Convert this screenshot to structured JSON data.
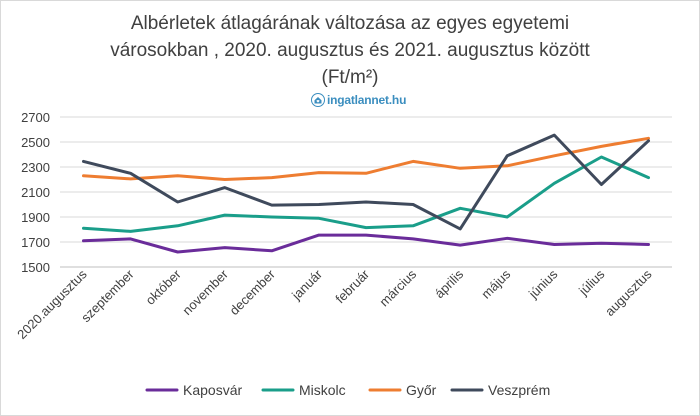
{
  "chart_data": {
    "type": "line",
    "title_lines": [
      "Albérletek átlagárának változása az egyes egyetemi",
      "városokban , 2020. augusztus és 2021. augusztus között",
      "(Ft/m²)"
    ],
    "categories": [
      "2020.augusztus",
      "szeptember",
      "október",
      "november",
      "december",
      "január",
      "február",
      "március",
      "április",
      "május",
      "június",
      "július",
      "augusztus"
    ],
    "ylim": [
      1500,
      2700
    ],
    "yticks": [
      1500,
      1700,
      1900,
      2100,
      2300,
      2500,
      2700
    ],
    "grid": true,
    "legend_position": "bottom",
    "series": [
      {
        "name": "Kaposvár",
        "color": "#6a2c9a",
        "values": [
          1710,
          1725,
          1620,
          1655,
          1630,
          1755,
          1755,
          1725,
          1675,
          1730,
          1680,
          1690,
          1680
        ]
      },
      {
        "name": "Miskolc",
        "color": "#1a9e8a",
        "values": [
          1810,
          1785,
          1830,
          1915,
          1900,
          1890,
          1815,
          1830,
          1970,
          1900,
          2170,
          2380,
          2215
        ]
      },
      {
        "name": "Győr",
        "color": "#ee7d31",
        "values": [
          2230,
          2205,
          2230,
          2200,
          2215,
          2255,
          2250,
          2345,
          2290,
          2310,
          2390,
          2465,
          2530
        ]
      },
      {
        "name": "Veszprém",
        "color": "#3f4a5c",
        "values": [
          2345,
          2250,
          2020,
          2135,
          1995,
          2000,
          2020,
          2000,
          1805,
          2390,
          2555,
          2160,
          2510
        ]
      }
    ]
  },
  "logo": {
    "text": "ingatlannet.hu",
    "color": "#3b8ebf"
  }
}
